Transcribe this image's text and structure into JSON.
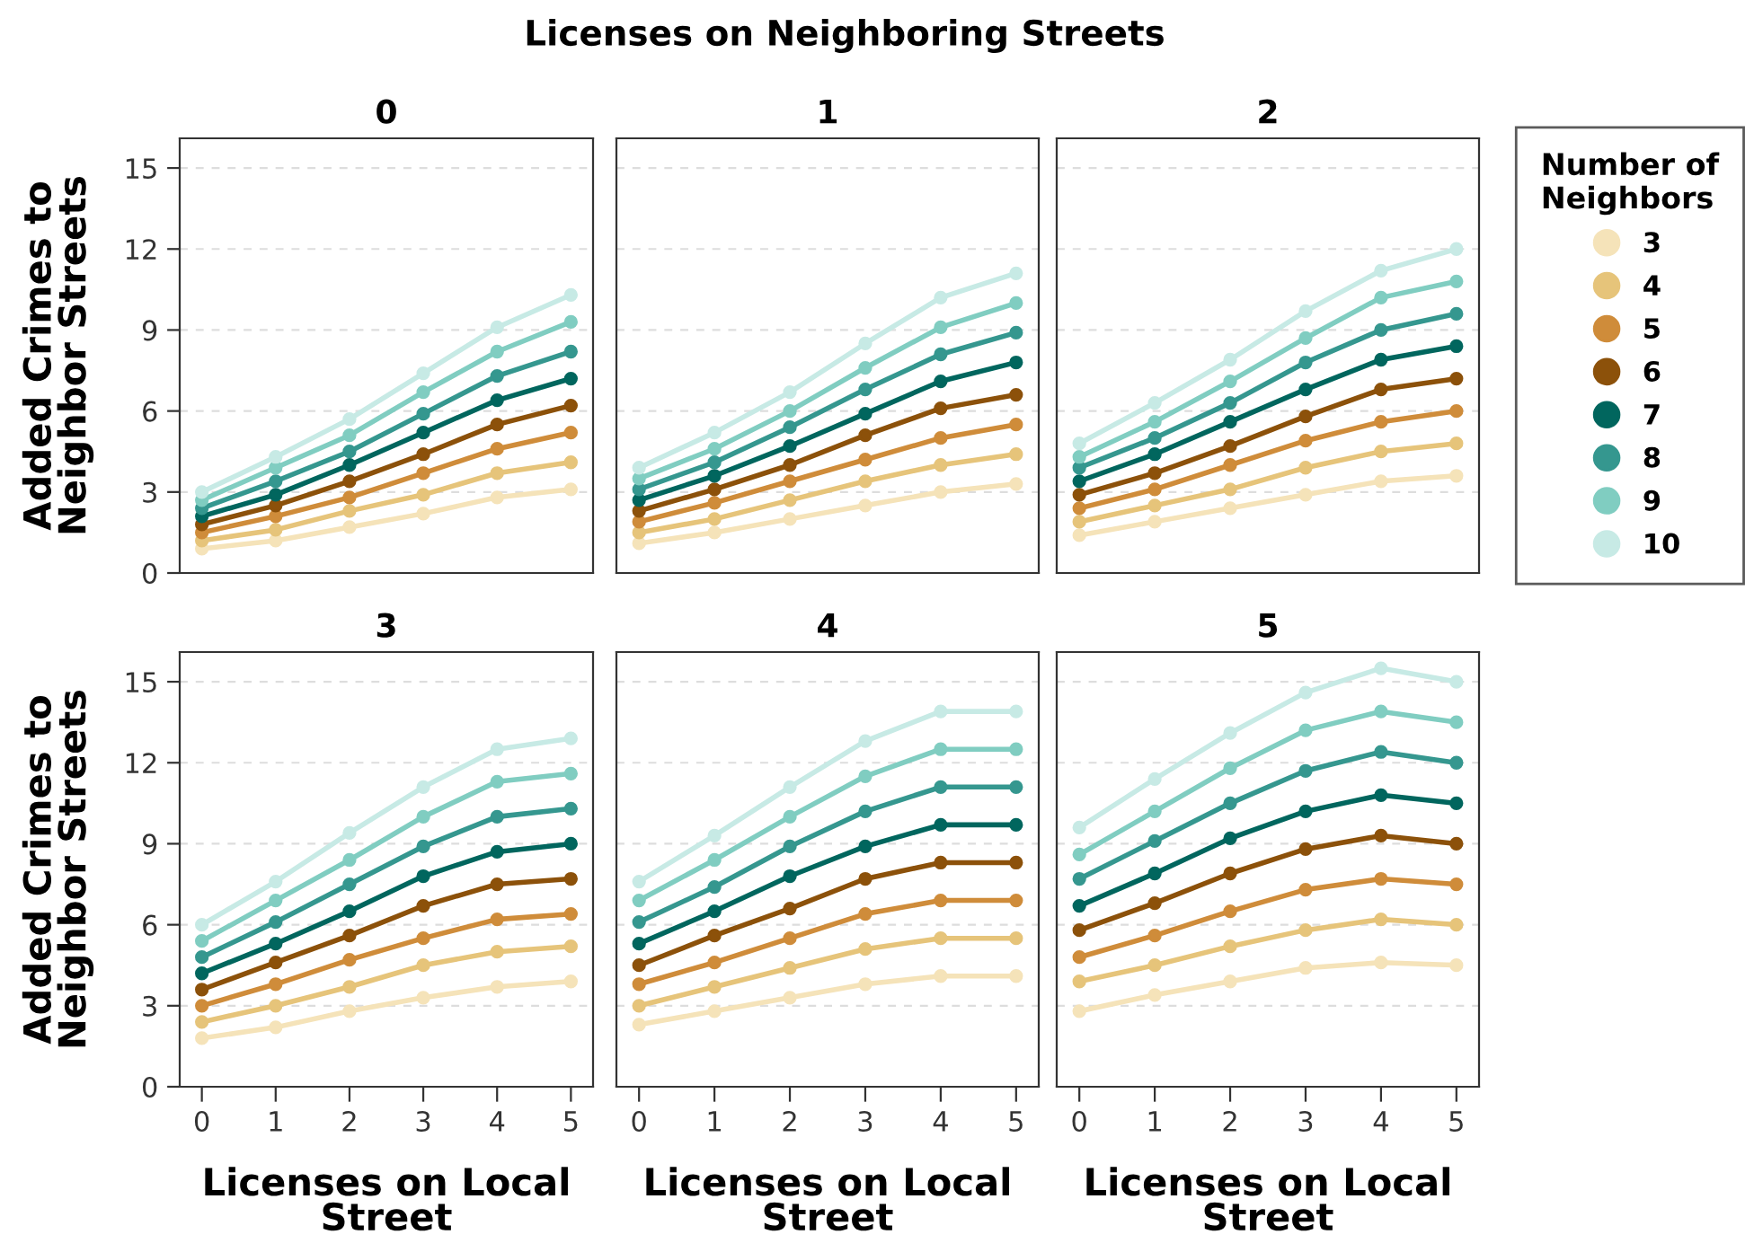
{
  "chart_data": [
    {
      "type": "line",
      "title": "0",
      "legend_title": "Number of\nNeighbors",
      "legend": "right",
      "annotations": [
        "Licenses on Neighboring Streets"
      ],
      "ylabel": "Added Crimes to\nNeighbor Streets",
      "x": [
        0,
        1,
        2,
        3,
        4,
        5
      ],
      "xlim": [
        -0.3,
        5.3
      ],
      "xticks": [
        0,
        1,
        2,
        3,
        4,
        5
      ],
      "ylim": [
        0,
        16.1
      ],
      "yticks": [
        0,
        3,
        6,
        9,
        12,
        15
      ],
      "grid": "y",
      "marker": "circle",
      "tick_labels": "y",
      "series": [
        {
          "name": "3",
          "color": "#f5e3b9",
          "values": [
            0.9,
            1.2,
            1.7,
            2.2,
            2.8,
            3.1
          ]
        },
        {
          "name": "4",
          "color": "#e6c47a",
          "values": [
            1.2,
            1.6,
            2.3,
            2.9,
            3.7,
            4.1
          ]
        },
        {
          "name": "5",
          "color": "#cf8c3a",
          "values": [
            1.5,
            2.1,
            2.8,
            3.7,
            4.6,
            5.2
          ]
        },
        {
          "name": "6",
          "color": "#8c510a",
          "values": [
            1.8,
            2.5,
            3.4,
            4.4,
            5.5,
            6.2
          ]
        },
        {
          "name": "7",
          "color": "#01665e",
          "values": [
            2.1,
            2.9,
            4.0,
            5.2,
            6.4,
            7.2
          ]
        },
        {
          "name": "8",
          "color": "#35978f",
          "values": [
            2.4,
            3.4,
            4.5,
            5.9,
            7.3,
            8.2
          ]
        },
        {
          "name": "9",
          "color": "#80cdc1",
          "values": [
            2.7,
            3.9,
            5.1,
            6.7,
            8.2,
            9.3
          ]
        },
        {
          "name": "10",
          "color": "#c7eae5",
          "values": [
            3.0,
            4.3,
            5.7,
            7.4,
            9.1,
            10.3
          ]
        }
      ]
    },
    {
      "type": "line",
      "title": "1",
      "x": [
        0,
        1,
        2,
        3,
        4,
        5
      ],
      "xlim": [
        -0.3,
        5.3
      ],
      "xticks": [
        0,
        1,
        2,
        3,
        4,
        5
      ],
      "ylim": [
        0,
        16.1
      ],
      "yticks": [
        0,
        3,
        6,
        9,
        12,
        15
      ],
      "grid": "y",
      "marker": "circle",
      "tick_labels": false,
      "series": [
        {
          "color": "#f5e3b9",
          "values": [
            1.1,
            1.5,
            2.0,
            2.5,
            3.0,
            3.3
          ]
        },
        {
          "color": "#e6c47a",
          "values": [
            1.5,
            2.0,
            2.7,
            3.4,
            4.0,
            4.4
          ]
        },
        {
          "color": "#cf8c3a",
          "values": [
            1.9,
            2.6,
            3.4,
            4.2,
            5.0,
            5.5
          ]
        },
        {
          "color": "#8c510a",
          "values": [
            2.3,
            3.1,
            4.0,
            5.1,
            6.1,
            6.6
          ]
        },
        {
          "color": "#01665e",
          "values": [
            2.7,
            3.6,
            4.7,
            5.9,
            7.1,
            7.8
          ]
        },
        {
          "color": "#35978f",
          "values": [
            3.1,
            4.1,
            5.4,
            6.8,
            8.1,
            8.9
          ]
        },
        {
          "color": "#80cdc1",
          "values": [
            3.5,
            4.6,
            6.0,
            7.6,
            9.1,
            10.0
          ]
        },
        {
          "color": "#c7eae5",
          "values": [
            3.9,
            5.2,
            6.7,
            8.5,
            10.2,
            11.1
          ]
        }
      ]
    },
    {
      "type": "line",
      "title": "2",
      "x": [
        0,
        1,
        2,
        3,
        4,
        5
      ],
      "xlim": [
        -0.3,
        5.3
      ],
      "xticks": [
        0,
        1,
        2,
        3,
        4,
        5
      ],
      "ylim": [
        0,
        16.1
      ],
      "yticks": [
        0,
        3,
        6,
        9,
        12,
        15
      ],
      "grid": "y",
      "marker": "circle",
      "tick_labels": false,
      "series": [
        {
          "color": "#f5e3b9",
          "values": [
            1.4,
            1.9,
            2.4,
            2.9,
            3.4,
            3.6
          ]
        },
        {
          "color": "#e6c47a",
          "values": [
            1.9,
            2.5,
            3.1,
            3.9,
            4.5,
            4.8
          ]
        },
        {
          "color": "#cf8c3a",
          "values": [
            2.4,
            3.1,
            4.0,
            4.9,
            5.6,
            6.0
          ]
        },
        {
          "color": "#8c510a",
          "values": [
            2.9,
            3.7,
            4.7,
            5.8,
            6.8,
            7.2
          ]
        },
        {
          "color": "#01665e",
          "values": [
            3.4,
            4.4,
            5.6,
            6.8,
            7.9,
            8.4
          ]
        },
        {
          "color": "#35978f",
          "values": [
            3.9,
            5.0,
            6.3,
            7.8,
            9.0,
            9.6
          ]
        },
        {
          "color": "#80cdc1",
          "values": [
            4.3,
            5.6,
            7.1,
            8.7,
            10.2,
            10.8
          ]
        },
        {
          "color": "#c7eae5",
          "values": [
            4.8,
            6.3,
            7.9,
            9.7,
            11.2,
            12.0
          ]
        }
      ]
    },
    {
      "type": "line",
      "title": "3",
      "ylabel": "Added Crimes to\nNeighbor Streets",
      "xlabel": "Licenses on Local\nStreet",
      "x": [
        0,
        1,
        2,
        3,
        4,
        5
      ],
      "xlim": [
        -0.3,
        5.3
      ],
      "xticks": [
        0,
        1,
        2,
        3,
        4,
        5
      ],
      "ylim": [
        0,
        16.1
      ],
      "yticks": [
        0,
        3,
        6,
        9,
        12,
        15
      ],
      "grid": "y",
      "marker": "circle",
      "series": [
        {
          "color": "#f5e3b9",
          "values": [
            1.8,
            2.2,
            2.8,
            3.3,
            3.7,
            3.9
          ]
        },
        {
          "color": "#e6c47a",
          "values": [
            2.4,
            3.0,
            3.7,
            4.5,
            5.0,
            5.2
          ]
        },
        {
          "color": "#cf8c3a",
          "values": [
            3.0,
            3.8,
            4.7,
            5.5,
            6.2,
            6.4
          ]
        },
        {
          "color": "#8c510a",
          "values": [
            3.6,
            4.6,
            5.6,
            6.7,
            7.5,
            7.7
          ]
        },
        {
          "color": "#01665e",
          "values": [
            4.2,
            5.3,
            6.5,
            7.8,
            8.7,
            9.0
          ]
        },
        {
          "color": "#35978f",
          "values": [
            4.8,
            6.1,
            7.5,
            8.9,
            10.0,
            10.3
          ]
        },
        {
          "color": "#80cdc1",
          "values": [
            5.4,
            6.9,
            8.4,
            10.0,
            11.3,
            11.6
          ]
        },
        {
          "color": "#c7eae5",
          "values": [
            6.0,
            7.6,
            9.4,
            11.1,
            12.5,
            12.9
          ]
        }
      ]
    },
    {
      "type": "line",
      "title": "4",
      "xlabel": "Licenses on Local\nStreet",
      "x": [
        0,
        1,
        2,
        3,
        4,
        5
      ],
      "xlim": [
        -0.3,
        5.3
      ],
      "xticks": [
        0,
        1,
        2,
        3,
        4,
        5
      ],
      "ylim": [
        0,
        16.1
      ],
      "yticks": [
        0,
        3,
        6,
        9,
        12,
        15
      ],
      "grid": "y",
      "marker": "circle",
      "tick_labels": "x",
      "series": [
        {
          "color": "#f5e3b9",
          "values": [
            2.3,
            2.8,
            3.3,
            3.8,
            4.1,
            4.1
          ]
        },
        {
          "color": "#e6c47a",
          "values": [
            3.0,
            3.7,
            4.4,
            5.1,
            5.5,
            5.5
          ]
        },
        {
          "color": "#cf8c3a",
          "values": [
            3.8,
            4.6,
            5.5,
            6.4,
            6.9,
            6.9
          ]
        },
        {
          "color": "#8c510a",
          "values": [
            4.5,
            5.6,
            6.6,
            7.7,
            8.3,
            8.3
          ]
        },
        {
          "color": "#01665e",
          "values": [
            5.3,
            6.5,
            7.8,
            8.9,
            9.7,
            9.7
          ]
        },
        {
          "color": "#35978f",
          "values": [
            6.1,
            7.4,
            8.9,
            10.2,
            11.1,
            11.1
          ]
        },
        {
          "color": "#80cdc1",
          "values": [
            6.9,
            8.4,
            10.0,
            11.5,
            12.5,
            12.5
          ]
        },
        {
          "color": "#c7eae5",
          "values": [
            7.6,
            9.3,
            11.1,
            12.8,
            13.9,
            13.9
          ]
        }
      ]
    },
    {
      "type": "line",
      "title": "5",
      "xlabel": "Licenses on Local\nStreet",
      "x": [
        0,
        1,
        2,
        3,
        4,
        5
      ],
      "xlim": [
        -0.3,
        5.3
      ],
      "xticks": [
        0,
        1,
        2,
        3,
        4,
        5
      ],
      "ylim": [
        0,
        16.1
      ],
      "yticks": [
        0,
        3,
        6,
        9,
        12,
        15
      ],
      "grid": "y",
      "marker": "circle",
      "tick_labels": "x",
      "series": [
        {
          "color": "#f5e3b9",
          "values": [
            2.8,
            3.4,
            3.9,
            4.4,
            4.6,
            4.5
          ]
        },
        {
          "color": "#e6c47a",
          "values": [
            3.9,
            4.5,
            5.2,
            5.8,
            6.2,
            6.0
          ]
        },
        {
          "color": "#cf8c3a",
          "values": [
            4.8,
            5.6,
            6.5,
            7.3,
            7.7,
            7.5
          ]
        },
        {
          "color": "#8c510a",
          "values": [
            5.8,
            6.8,
            7.9,
            8.8,
            9.3,
            9.0
          ]
        },
        {
          "color": "#01665e",
          "values": [
            6.7,
            7.9,
            9.2,
            10.2,
            10.8,
            10.5
          ]
        },
        {
          "color": "#35978f",
          "values": [
            7.7,
            9.1,
            10.5,
            11.7,
            12.4,
            12.0
          ]
        },
        {
          "color": "#80cdc1",
          "values": [
            8.6,
            10.2,
            11.8,
            13.2,
            13.9,
            13.5
          ]
        },
        {
          "color": "#c7eae5",
          "values": [
            9.6,
            11.4,
            13.1,
            14.6,
            15.5,
            15.0
          ]
        }
      ]
    }
  ]
}
